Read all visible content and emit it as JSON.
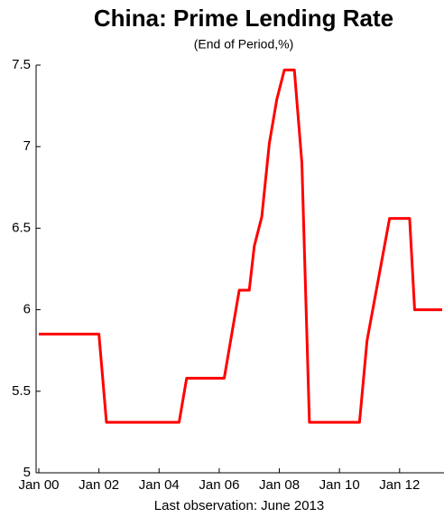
{
  "chart_data": {
    "type": "line",
    "title": "China: Prime Lending Rate",
    "subtitle": "(End of Period,%)",
    "note": "Last observation: June 2013",
    "x": [
      "2000-01",
      "2002-01",
      "2002-04",
      "2004-09",
      "2004-12",
      "2006-03",
      "2006-06",
      "2006-09",
      "2007-01",
      "2007-03",
      "2007-06",
      "2007-09",
      "2007-12",
      "2008-03",
      "2008-07",
      "2008-10",
      "2009-01",
      "2010-09",
      "2010-12",
      "2011-03",
      "2011-06",
      "2011-09",
      "2012-05",
      "2012-07",
      "2013-06"
    ],
    "series": [
      {
        "name": "Prime Lending Rate",
        "color": "#ff0000",
        "values": [
          5.85,
          5.85,
          5.31,
          5.31,
          5.58,
          5.58,
          5.85,
          6.12,
          6.12,
          6.39,
          6.57,
          7.02,
          7.29,
          7.47,
          7.47,
          6.9,
          5.31,
          5.31,
          5.81,
          6.06,
          6.31,
          6.56,
          6.56,
          6.0,
          6.0
        ]
      }
    ],
    "xlim": [
      "2000-01",
      "2013-06"
    ],
    "xticks": [
      {
        "value": "2000-01",
        "label": "Jan 00"
      },
      {
        "value": "2002-01",
        "label": "Jan 02"
      },
      {
        "value": "2004-01",
        "label": "Jan 04"
      },
      {
        "value": "2006-01",
        "label": "Jan 06"
      },
      {
        "value": "2008-01",
        "label": "Jan 08"
      },
      {
        "value": "2010-01",
        "label": "Jan 10"
      },
      {
        "value": "2012-01",
        "label": "Jan 12"
      }
    ],
    "ylim": [
      5,
      7.5
    ],
    "yticks": [
      5,
      5.5,
      6,
      6.5,
      7,
      7.5
    ],
    "grid": false
  }
}
